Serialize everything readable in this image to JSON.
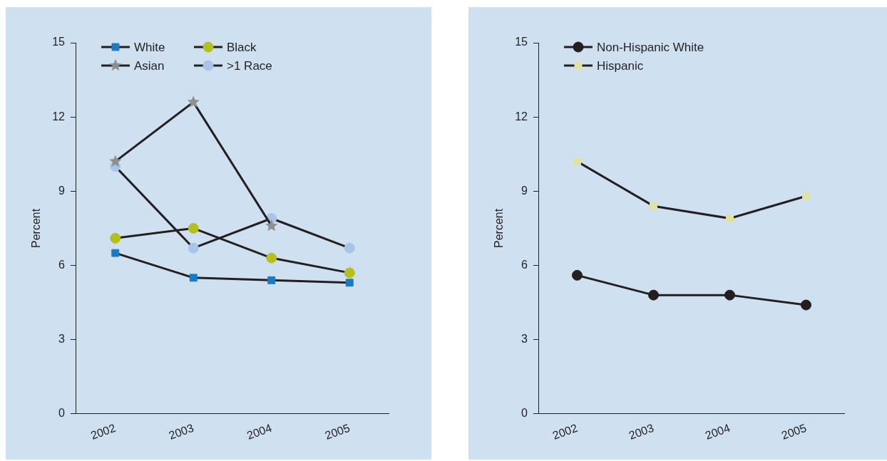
{
  "chart_data": [
    {
      "type": "line",
      "ylabel": "Percent",
      "categories": [
        "2002",
        "2003",
        "2004",
        "2005"
      ],
      "ylim": [
        0,
        15
      ],
      "yticks": [
        0,
        3,
        6,
        9,
        12,
        15
      ],
      "grid": false,
      "legend": "top left",
      "series": [
        {
          "name": "White",
          "color": "#1a7ac4",
          "marker": "square",
          "values": [
            6.5,
            5.5,
            5.4,
            5.3
          ]
        },
        {
          "name": "Black",
          "color": "#b5bf1f",
          "marker": "circle",
          "values": [
            7.1,
            7.5,
            6.3,
            5.7
          ]
        },
        {
          "name": "Asian",
          "color": "#8f8f8f",
          "marker": "star",
          "values": [
            10.2,
            12.6,
            7.6,
            null
          ]
        },
        {
          "name": ">1 Race",
          "color": "#a8c4e8",
          "marker": "circle",
          "values": [
            10.0,
            6.7,
            7.9,
            6.7
          ]
        }
      ]
    },
    {
      "type": "line",
      "ylabel": "Percent",
      "categories": [
        "2002",
        "2003",
        "2004",
        "2005"
      ],
      "ylim": [
        0,
        15
      ],
      "yticks": [
        0,
        3,
        6,
        9,
        12,
        15
      ],
      "grid": false,
      "legend": "top left",
      "series": [
        {
          "name": "Non-Hispanic White",
          "color": "#231f20",
          "marker": "circle",
          "values": [
            5.6,
            4.8,
            4.8,
            4.4
          ]
        },
        {
          "name": "Hispanic",
          "color": "#e0e3a0",
          "marker": "square",
          "values": [
            10.2,
            8.4,
            7.9,
            8.8
          ]
        }
      ]
    }
  ]
}
